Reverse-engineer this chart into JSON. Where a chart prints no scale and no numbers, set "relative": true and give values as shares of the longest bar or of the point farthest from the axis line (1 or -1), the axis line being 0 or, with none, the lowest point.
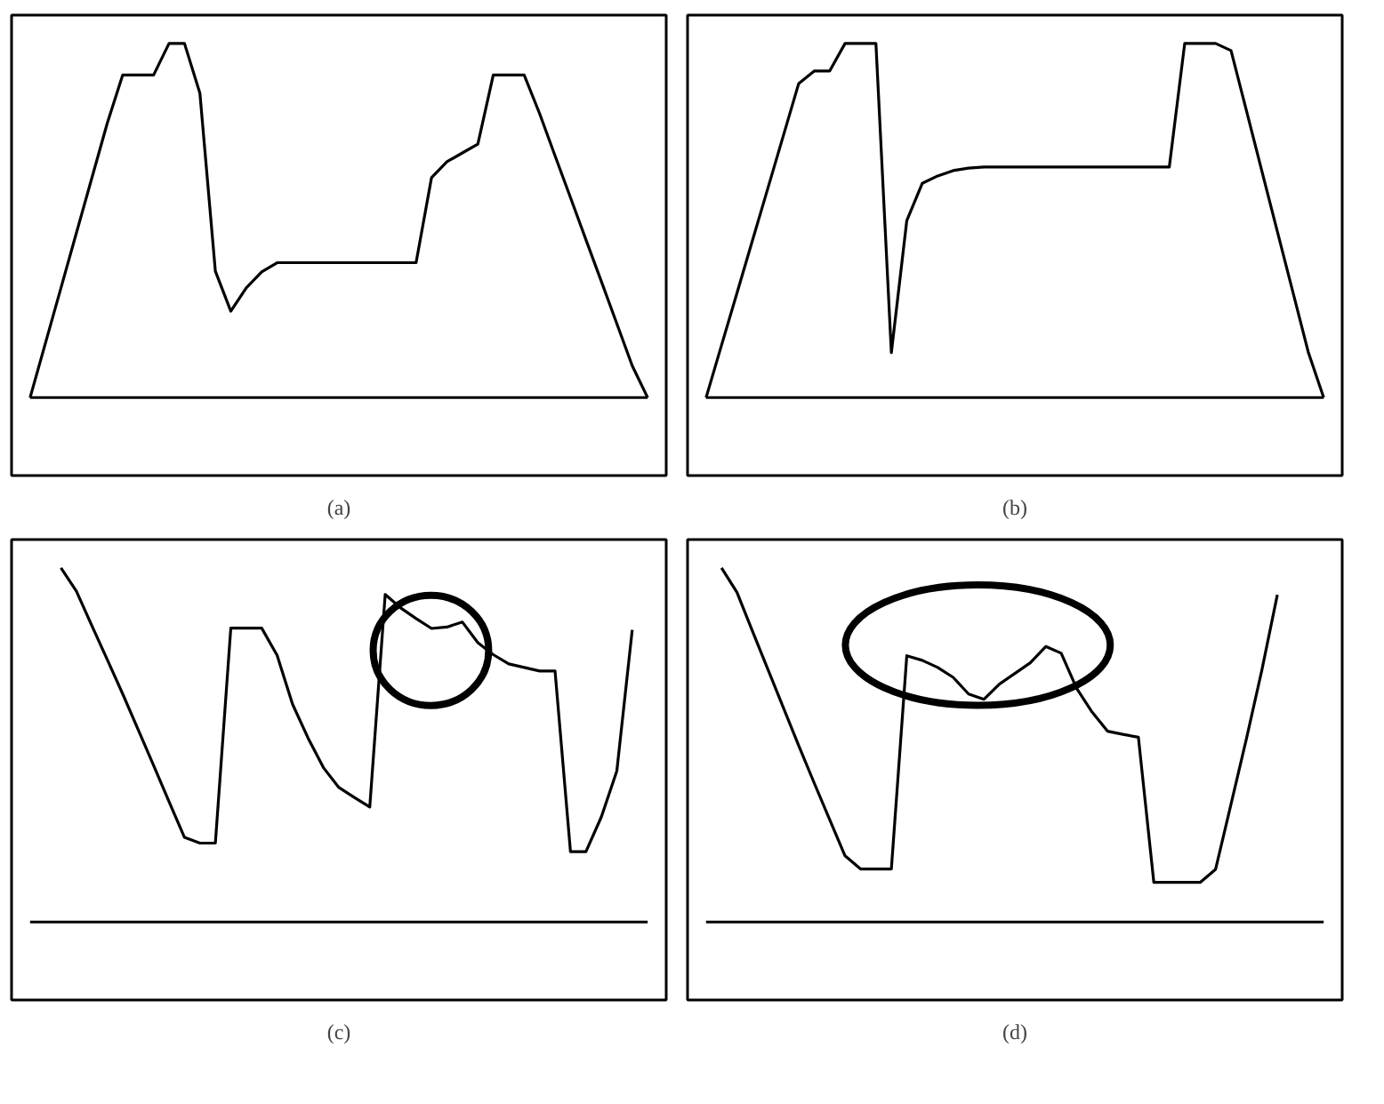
{
  "chart_data": [
    {
      "type": "line",
      "relative": true,
      "xlabel": "(a)",
      "color": "#000000",
      "categories": [
        null,
        null,
        null,
        null,
        null,
        null,
        null,
        null,
        null,
        null,
        null,
        null,
        null,
        null,
        null,
        null,
        null,
        null,
        null,
        null,
        null,
        null,
        null,
        null,
        null,
        null,
        null,
        null,
        null,
        null,
        null,
        null,
        null,
        null,
        null,
        null,
        null,
        null,
        null,
        null,
        null
      ],
      "values": [
        0,
        0.155,
        0.31,
        0.465,
        0.62,
        0.775,
        0.911,
        0.911,
        0.911,
        1,
        1,
        0.859,
        0.357,
        0.244,
        0.31,
        0.355,
        0.381,
        0.381,
        0.381,
        0.381,
        0.381,
        0.381,
        0.381,
        0.381,
        0.381,
        0.381,
        0.621,
        0.666,
        0.691,
        0.716,
        0.911,
        0.911,
        0.911,
        0.802,
        0.683,
        0.565,
        0.446,
        0.328,
        0.209,
        0.09,
        0
      ]
    },
    {
      "type": "line",
      "relative": true,
      "xlabel": "(b)",
      "color": "#000000",
      "categories": [
        null,
        null,
        null,
        null,
        null,
        null,
        null,
        null,
        null,
        null,
        null,
        null,
        null,
        null,
        null,
        null,
        null,
        null,
        null,
        null,
        null,
        null,
        null,
        null,
        null,
        null,
        null,
        null,
        null,
        null,
        null,
        null,
        null,
        null,
        null,
        null,
        null,
        null,
        null,
        null,
        null
      ],
      "values": [
        0,
        0.148,
        0.295,
        0.443,
        0.591,
        0.739,
        0.887,
        0.922,
        0.922,
        1,
        1,
        1,
        0.127,
        0.5,
        0.605,
        0.626,
        0.641,
        0.648,
        0.651,
        0.651,
        0.651,
        0.651,
        0.651,
        0.651,
        0.651,
        0.651,
        0.651,
        0.651,
        0.651,
        0.651,
        0.651,
        1,
        1,
        1,
        0.98,
        0.81,
        0.639,
        0.469,
        0.299,
        0.129,
        0
      ]
    },
    {
      "type": "line",
      "relative": true,
      "xlabel": "(c)",
      "color": "#000000",
      "categories": [
        null,
        null,
        null,
        null,
        null,
        null,
        null,
        null,
        null,
        null,
        null,
        null,
        null,
        null,
        null,
        null,
        null,
        null,
        null,
        null,
        null,
        null,
        null,
        null,
        null,
        null,
        null,
        null,
        null,
        null,
        null,
        null,
        null,
        null,
        null,
        null,
        null,
        null,
        null,
        null,
        null
      ],
      "values": [
        null,
        null,
        1,
        0.934,
        0.837,
        0.741,
        0.644,
        0.543,
        0.442,
        0.34,
        0.239,
        0.223,
        0.223,
        0.83,
        0.83,
        0.83,
        0.753,
        0.615,
        0.52,
        0.436,
        0.38,
        0.352,
        0.325,
        0.925,
        0.887,
        0.857,
        0.829,
        0.833,
        0.847,
        0.789,
        0.755,
        0.729,
        0.719,
        0.709,
        0.709,
        0.199,
        0.199,
        0.297,
        0.426,
        0.825,
        null
      ]
    },
    {
      "type": "line",
      "relative": true,
      "xlabel": "(d)",
      "color": "#000000",
      "categories": [
        null,
        null,
        null,
        null,
        null,
        null,
        null,
        null,
        null,
        null,
        null,
        null,
        null,
        null,
        null,
        null,
        null,
        null,
        null,
        null,
        null,
        null,
        null,
        null,
        null,
        null,
        null,
        null,
        null,
        null,
        null,
        null,
        null,
        null,
        null,
        null,
        null,
        null,
        null,
        null,
        null
      ],
      "values": [
        null,
        1,
        0.931,
        0.822,
        0.714,
        0.606,
        0.498,
        0.393,
        0.29,
        0.187,
        0.15,
        0.15,
        0.15,
        0.752,
        0.739,
        0.719,
        0.691,
        0.644,
        0.629,
        0.672,
        0.702,
        0.732,
        0.778,
        0.759,
        0.66,
        0.593,
        0.539,
        0.53,
        0.522,
        0.112,
        0.112,
        0.112,
        0.112,
        0.149,
        0.333,
        0.518,
        0.712,
        0.924,
        null,
        null,
        null
      ]
    }
  ]
}
